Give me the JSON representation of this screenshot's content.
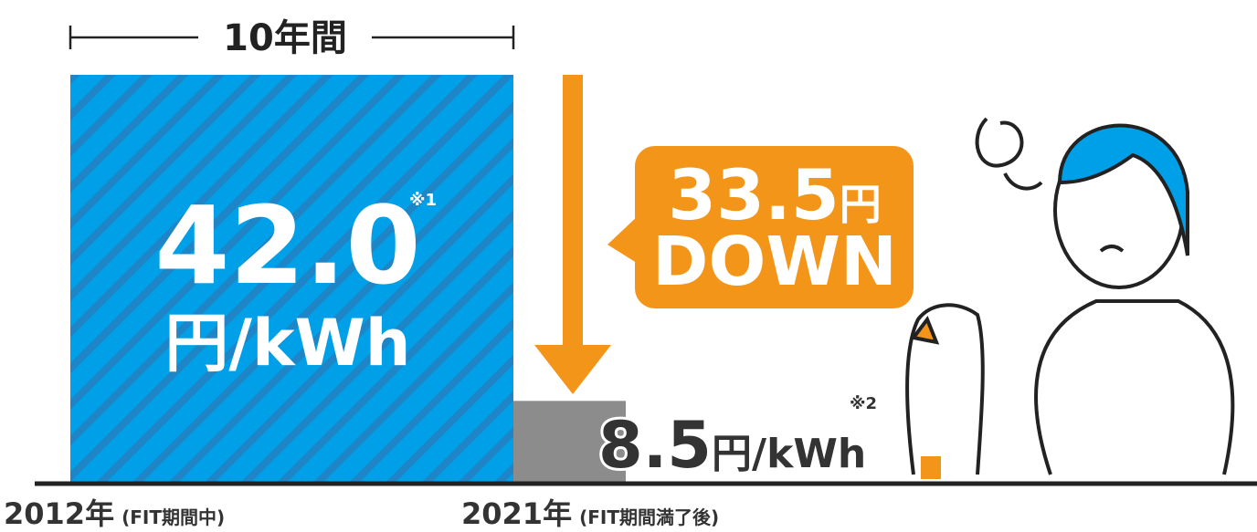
{
  "chart_data": {
    "type": "bar",
    "categories": [
      "2012年",
      "2021年"
    ],
    "category_notes": [
      "(FIT期間中)",
      "(FIT期間満了後)"
    ],
    "values": [
      42.0,
      8.5
    ],
    "value_labels": [
      "42.0",
      "8.5"
    ],
    "unit": "円/kWh",
    "colors": [
      "#00a0e9",
      "#8c8c8c"
    ],
    "annotations": {
      "period": "10年間",
      "drop_value": "33.5",
      "drop_unit": "円",
      "drop_word": "DOWN",
      "note_1": "※1",
      "note_2": "※2"
    }
  }
}
